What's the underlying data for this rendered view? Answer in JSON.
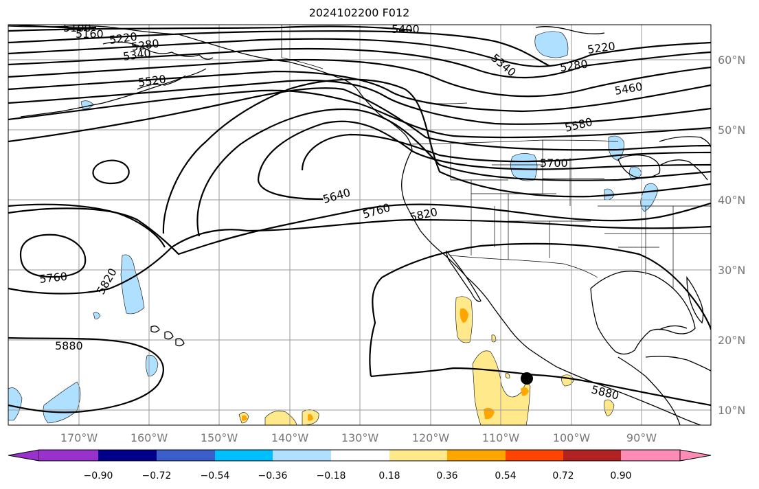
{
  "title": "2024102200 F012",
  "map": {
    "lon_ticks": [
      "170°W",
      "160°W",
      "150°W",
      "140°W",
      "130°W",
      "120°W",
      "110°W",
      "100°W",
      "90°W"
    ],
    "lat_ticks": [
      "60°N",
      "50°N",
      "40°N",
      "30°N",
      "20°N",
      "10°N"
    ]
  },
  "contour_labels": [
    "5100",
    "5160",
    "5220",
    "5280",
    "5340",
    "5520",
    "5400",
    "5340",
    "5220",
    "5280",
    "5460",
    "5580",
    "5700",
    "5640",
    "5760",
    "5820",
    "5760",
    "5820",
    "5880",
    "5880"
  ],
  "colorbar": {
    "ticks": [
      "−0.90",
      "−0.72",
      "−0.54",
      "−0.36",
      "−0.18",
      "0.18",
      "0.36",
      "0.54",
      "0.72",
      "0.90"
    ],
    "colors": [
      "#9932cc",
      "#00008b",
      "#3a5fcd",
      "#00bfff",
      "#b0e0ff",
      "#ffffff",
      "#ffe98a",
      "#ffa500",
      "#ff4500",
      "#b22222",
      "#ff8cb4"
    ]
  },
  "colors": {
    "positive_light": "#ffe98a",
    "positive_mid": "#ffa500",
    "negative_light": "#b0e0ff"
  }
}
